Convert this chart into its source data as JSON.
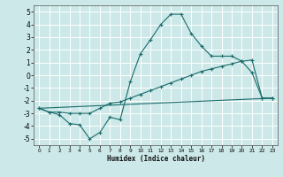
{
  "xlabel": "Humidex (Indice chaleur)",
  "bg_color": "#cce8e8",
  "grid_color": "#ffffff",
  "line_color": "#1a6b6b",
  "xlim": [
    -0.5,
    23.5
  ],
  "ylim": [
    -5.5,
    5.5
  ],
  "xticks": [
    0,
    1,
    2,
    3,
    4,
    5,
    6,
    7,
    8,
    9,
    10,
    11,
    12,
    13,
    14,
    15,
    16,
    17,
    18,
    19,
    20,
    21,
    22,
    23
  ],
  "yticks": [
    -5,
    -4,
    -3,
    -2,
    -1,
    0,
    1,
    2,
    3,
    4,
    5
  ],
  "line1_x": [
    0,
    1,
    2,
    3,
    4,
    5,
    6,
    7,
    8,
    9,
    10,
    11,
    12,
    13,
    14,
    15,
    16,
    17,
    18,
    19,
    20,
    21,
    22,
    23
  ],
  "line1_y": [
    -2.6,
    -2.9,
    -3.1,
    -3.8,
    -3.9,
    -5.0,
    -4.5,
    -3.3,
    -3.5,
    -0.5,
    1.7,
    2.8,
    4.0,
    4.8,
    4.8,
    3.3,
    2.3,
    1.5,
    1.5,
    1.5,
    1.1,
    0.2,
    -1.8,
    -1.8
  ],
  "line2_x": [
    0,
    1,
    2,
    3,
    4,
    5,
    6,
    7,
    8,
    9,
    10,
    11,
    12,
    13,
    14,
    15,
    16,
    17,
    18,
    19,
    20,
    21,
    22,
    23
  ],
  "line2_y": [
    -2.6,
    -2.9,
    -2.9,
    -3.0,
    -3.0,
    -3.0,
    -2.6,
    -2.2,
    -2.1,
    -1.8,
    -1.5,
    -1.2,
    -0.9,
    -0.6,
    -0.3,
    0.0,
    0.3,
    0.5,
    0.7,
    0.9,
    1.1,
    1.2,
    -1.8,
    -1.8
  ],
  "line3_x": [
    0,
    23
  ],
  "line3_y": [
    -2.6,
    -1.8
  ]
}
